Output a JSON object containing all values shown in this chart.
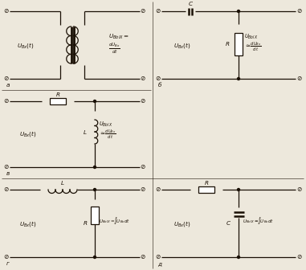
{
  "bg_color": "#ede8dc",
  "line_color": "#1a1005",
  "figsize": [
    3.81,
    3.36
  ],
  "dpi": 100,
  "panels": {
    "a": {
      "label": "a",
      "type": "transformer_diff"
    },
    "b": {
      "label": "б",
      "type": "CR_diff"
    },
    "c": {
      "label": "в",
      "type": "RL_diff"
    },
    "d": {
      "label": "г",
      "type": "LR_int"
    },
    "e": {
      "label": "д",
      "type": "RC_int"
    }
  }
}
